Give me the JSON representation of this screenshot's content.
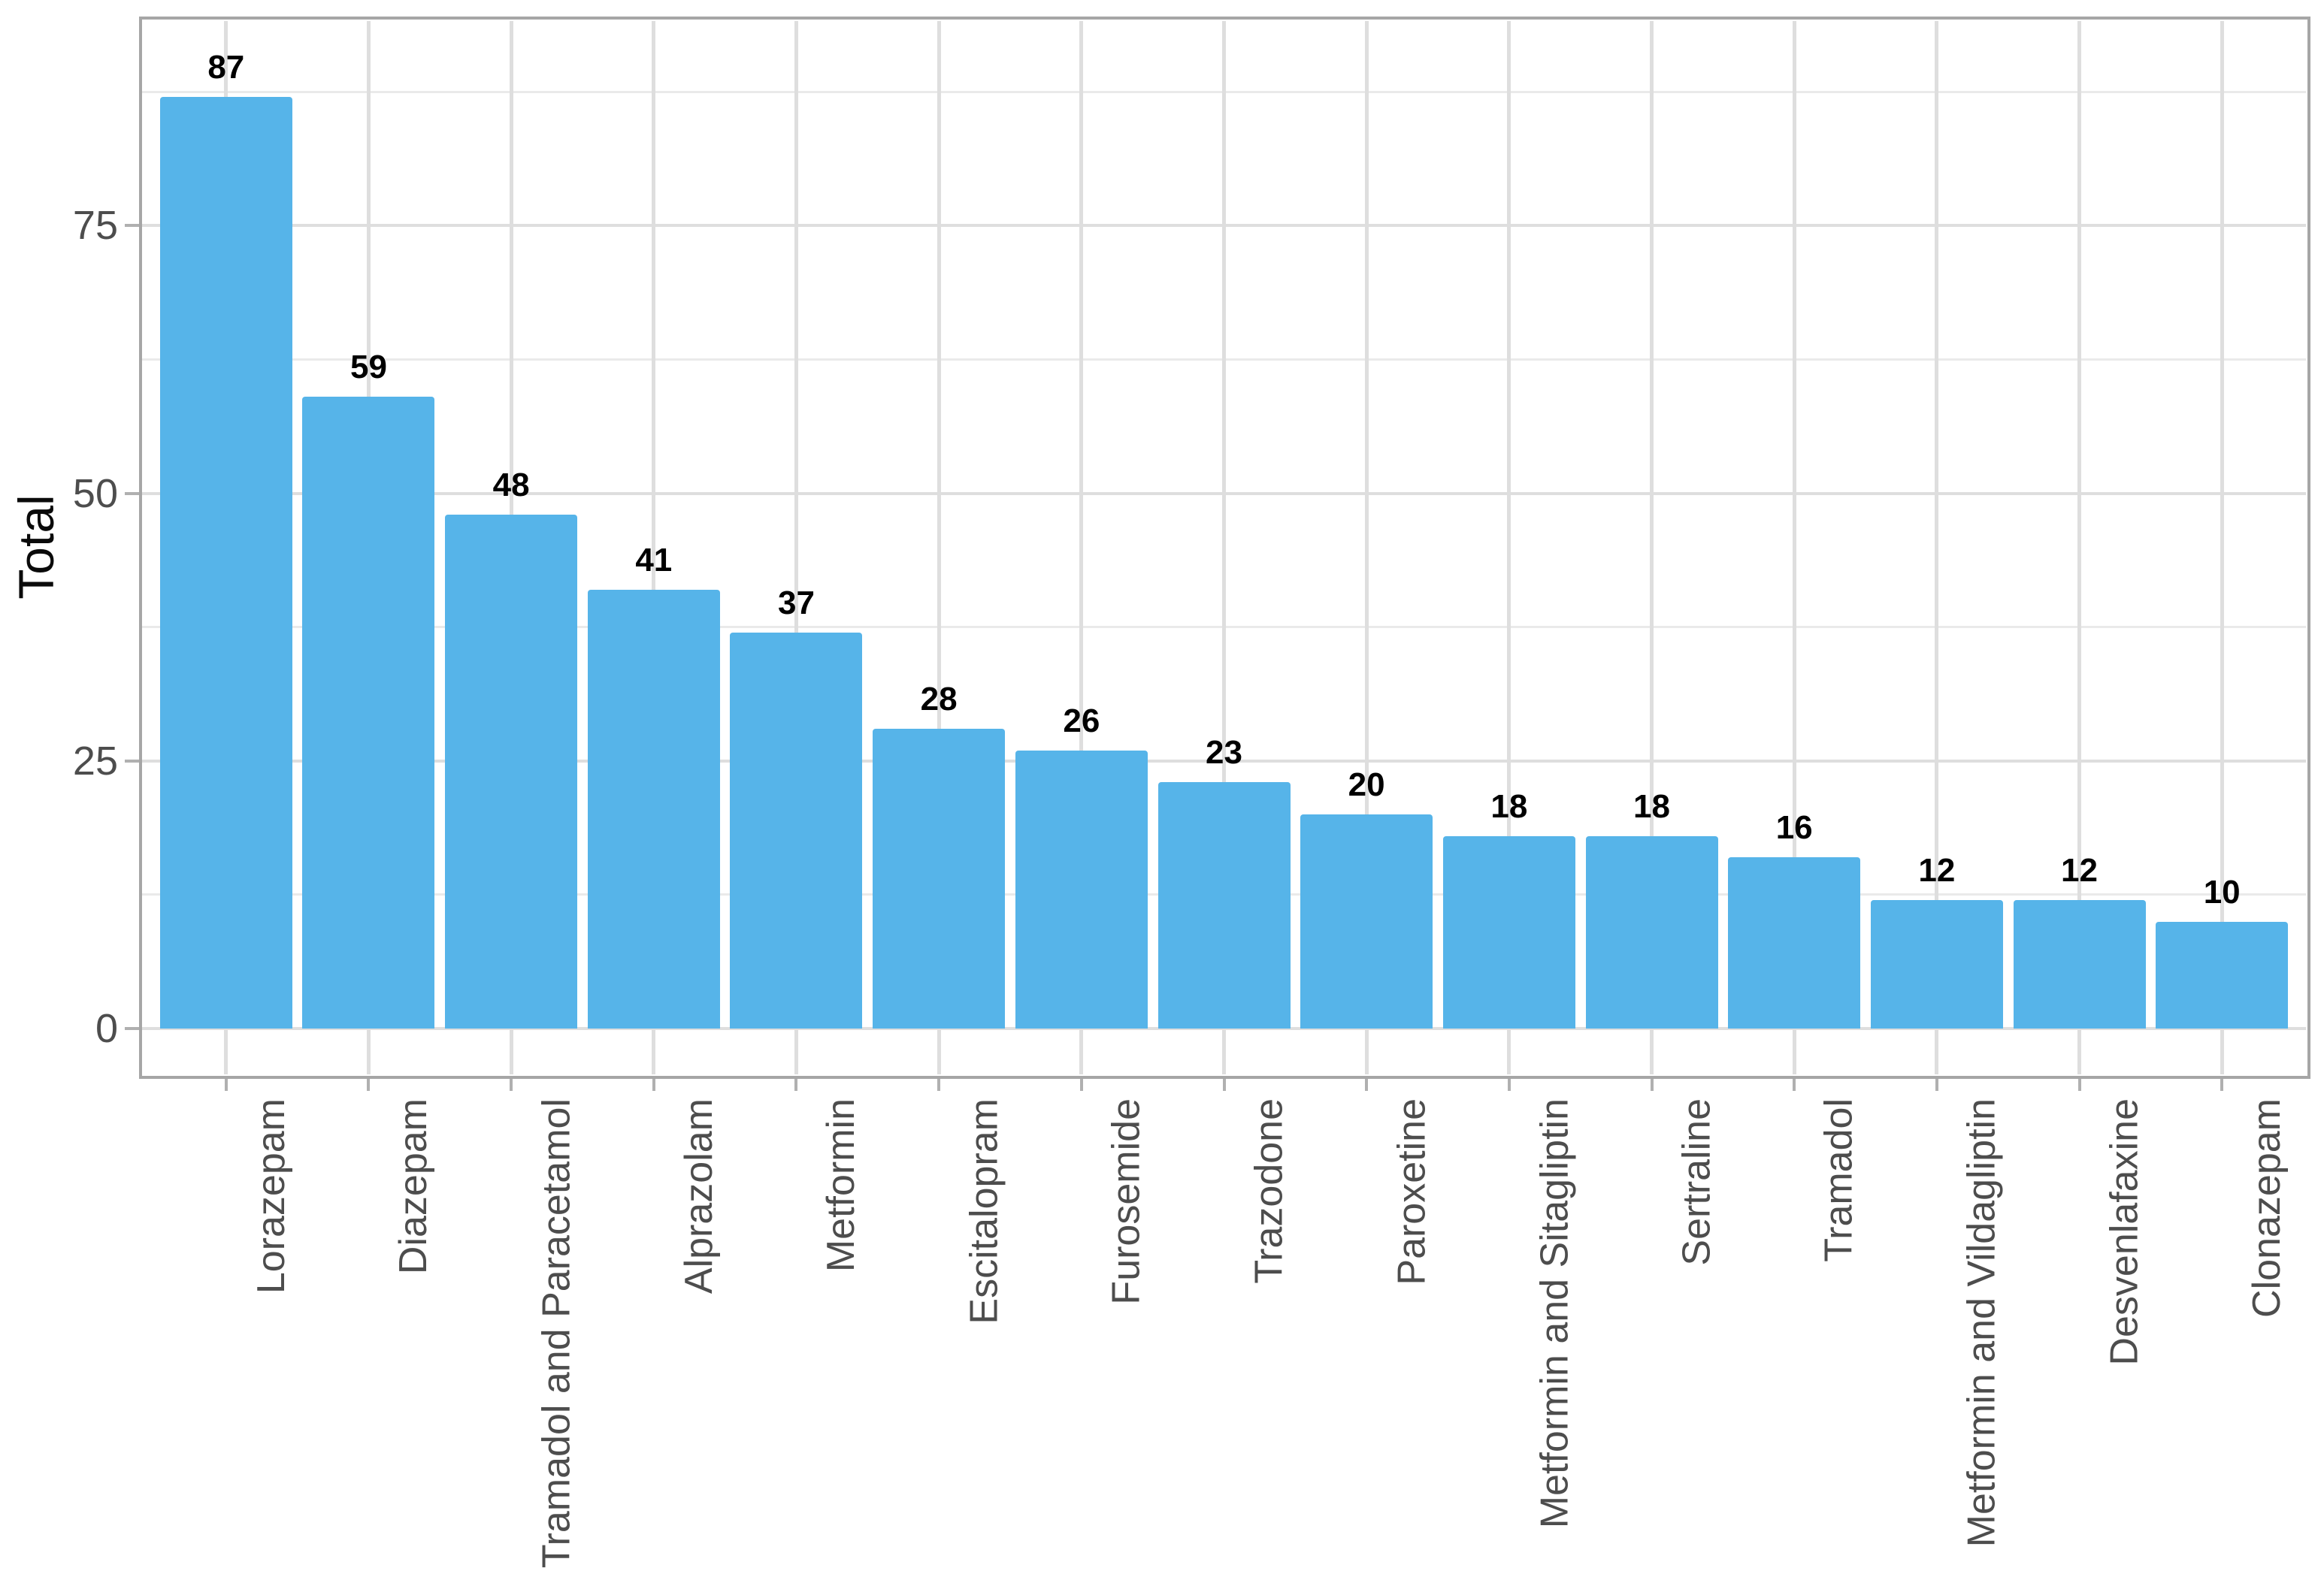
{
  "chart_data": {
    "type": "bar",
    "title": "",
    "xlabel": "",
    "ylabel": "Total",
    "categories": [
      "Lorazepam",
      "Diazepam",
      "Tramadol and Paracetamol",
      "Alprazolam",
      "Metformin",
      "Escitalopram",
      "Furosemide",
      "Trazodone",
      "Paroxetine",
      "Metformin and Sitagliptin",
      "Sertraline",
      "Tramadol",
      "Metformin and Vildagliptin",
      "Desvenlafaxine",
      "Clonazepam"
    ],
    "values": [
      87,
      59,
      48,
      41,
      37,
      28,
      26,
      23,
      20,
      18,
      18,
      16,
      12,
      12,
      10
    ],
    "value_labels": [
      "87",
      "59",
      "48",
      "41",
      "37",
      "28",
      "26",
      "23",
      "20",
      "18",
      "18",
      "16",
      "12",
      "12",
      "10"
    ],
    "y_major_ticks": [
      0,
      25,
      50,
      75
    ],
    "y_tick_labels": [
      "0",
      "25",
      "50",
      "75"
    ],
    "y_minor_gridlines": [
      12.5,
      37.5,
      62.5,
      87.5
    ],
    "ylim_panel": [
      -4.42,
      94.4
    ],
    "legend": "none",
    "grid": {
      "horizontal_major": true,
      "horizontal_minor": true,
      "vertical_major_at_categories": true,
      "vertical_minor": false
    },
    "styles": {
      "bar_fill": "#56B4E9",
      "grid_major_color": "#DEDEDE",
      "grid_minor_color": "#EAEAEA",
      "panel_border_color": "#A6A6A6",
      "tick_mark_color": "#B0B0B0",
      "axis_text_color": "#4D4D4D",
      "axis_title_color": "#0A0A0A",
      "value_label_color": "#000000",
      "panel_background": "#FFFFFF"
    }
  }
}
